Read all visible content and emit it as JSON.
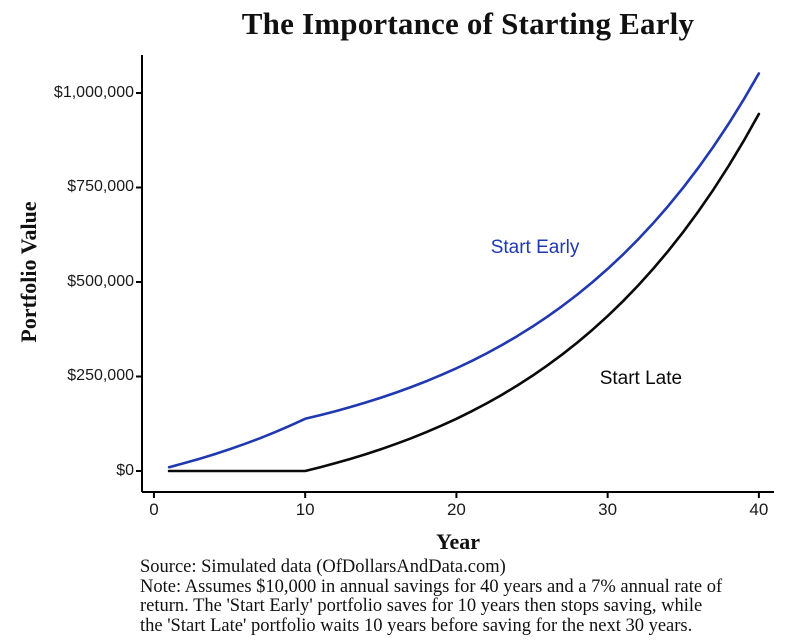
{
  "chart_data": {
    "type": "line",
    "title": "The Importance of Starting Early",
    "xlabel": "Year",
    "ylabel": "Portfolio Value",
    "xlim": [
      -0.79,
      41.0
    ],
    "ylim": [
      -55556,
      1100529
    ],
    "grid": false,
    "legend_position": "inline-annotations",
    "axis_color": "#000000",
    "x_ticks": [
      0,
      10,
      20,
      30,
      40
    ],
    "x_tick_labels": [
      "0",
      "10",
      "20",
      "30",
      "40"
    ],
    "y_ticks": [
      0,
      250000,
      500000,
      750000,
      1000000
    ],
    "y_tick_labels": [
      "$0",
      "$250,000",
      "$500,000",
      "$750,000",
      "$1,000,000"
    ],
    "x": [
      1,
      2,
      3,
      4,
      5,
      6,
      7,
      8,
      9,
      10,
      11,
      12,
      13,
      14,
      15,
      16,
      17,
      18,
      19,
      20,
      21,
      22,
      23,
      24,
      25,
      26,
      27,
      28,
      29,
      30,
      31,
      32,
      33,
      34,
      35,
      36,
      37,
      38,
      39,
      40
    ],
    "series": [
      {
        "name": "Start Early",
        "color": "#2038b0",
        "values": [
          10000,
          20700,
          32149,
          44399,
          57507,
          71533,
          86540,
          102598,
          119780,
          138164,
          147836,
          158184,
          169257,
          181105,
          193783,
          207347,
          221862,
          237392,
          254010,
          271790,
          290816,
          311173,
          332955,
          356262,
          381200,
          407884,
          436436,
          466986,
          499675,
          534653,
          572078,
          612124,
          654972,
          700820,
          749878,
          802369,
          858535,
          918633,
          982937,
          1051743
        ]
      },
      {
        "name": "Start Late",
        "color": "#0a0a0a",
        "values": [
          0,
          0,
          0,
          0,
          0,
          0,
          0,
          0,
          0,
          0,
          10000,
          20700,
          32149,
          44399,
          57507,
          71533,
          86540,
          102598,
          119780,
          138164,
          157836,
          178884,
          201406,
          225504,
          251290,
          278880,
          308402,
          339990,
          373789,
          409955,
          448652,
          490057,
          534361,
          581766,
          632490,
          686764,
          744838,
          806977,
          873465,
          944608
        ]
      }
    ],
    "annotations": [
      {
        "text": "Start Early",
        "x": 25.2,
        "y": 591000,
        "color": "#2038b0"
      },
      {
        "text": "Start Late",
        "x": 32.2,
        "y": 243000,
        "color": "#0a0a0a"
      }
    ]
  },
  "footer": {
    "source": "Source: Simulated data (OfDollarsAndData.com)",
    "note_lines": [
      "Note: Assumes $10,000 in annual savings for 40 years and a 7% annual rate of",
      "return. The 'Start Early' portfolio saves for 10 years then stops saving, while",
      "the 'Start Late' portfolio waits 10 years before saving for the next 30 years."
    ]
  }
}
